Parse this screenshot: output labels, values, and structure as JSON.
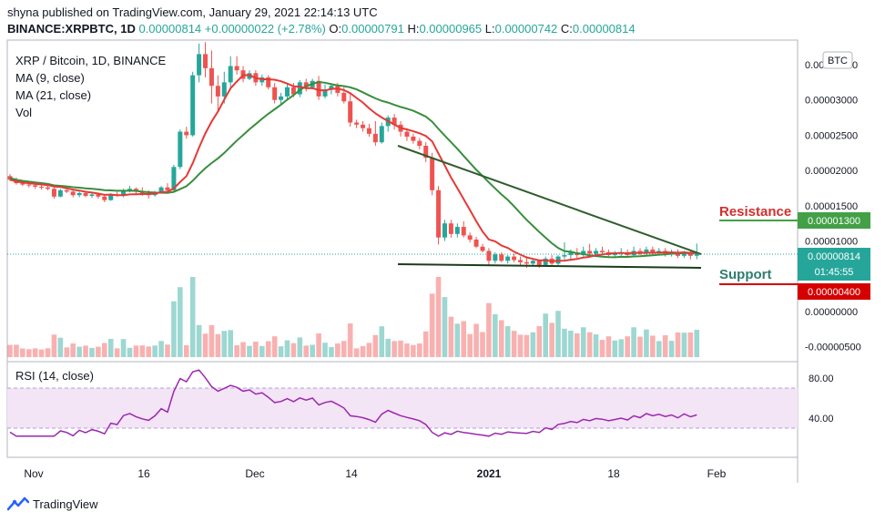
{
  "header": {
    "publish_line": "shyna published on TradingView.com, January 29, 2021 22:14:13 UTC",
    "symbol": "BINANCE:XRPBTC, 1D",
    "last": "0.00000814",
    "change": "+0.00000022 (+2.78%)",
    "o_label": "O:",
    "o_value": "0.00000791",
    "h_label": "H:",
    "h_value": "0.00000965",
    "l_label": "L:",
    "l_value": "0.00000742",
    "c_label": "C:",
    "c_value": "0.00000814"
  },
  "legend": {
    "title": "XRP / Bitcoin, 1D, BINANCE",
    "ma9": "MA (9, close)",
    "ma21": "MA (21, close)",
    "vol": "Vol"
  },
  "rsi_label": "RSI (14, close)",
  "currency_badge": "BTC",
  "annotations": {
    "resistance": "Resistance",
    "support": "Support",
    "resistance_value": "0.00001300",
    "price_value": "0.00000814",
    "countdown": "01:45:55",
    "support_value": "0.00000400"
  },
  "brand": "TradingView",
  "colors": {
    "up": "#26a69a",
    "down": "#ef5350",
    "ma9": "#e53935",
    "ma21": "#388e3c",
    "trendline": "#2e5e2e",
    "rsi": "#9c27b0",
    "rsi_band": "#f3e5f5",
    "resistance_badge": "#43a047",
    "support_badge": "#d50000",
    "price_badge": "#26a69a"
  },
  "chart_data": {
    "type": "candlestick",
    "title": "XRP / Bitcoin, 1D, BINANCE",
    "x_ticks": [
      "Nov",
      "16",
      "Dec",
      "14",
      "2021",
      "18",
      "Feb"
    ],
    "price_axis": {
      "ticks": [
        "0.00003500",
        "0.00003000",
        "0.00002500",
        "0.00002000",
        "0.00001500",
        "0.00001000",
        "0.00000500",
        "0.00000000",
        "-0.00000500"
      ],
      "tick_values": [
        3.5e-05,
        3e-05,
        2.5e-05,
        2e-05,
        1.5e-05,
        1e-05,
        5e-06,
        0,
        -5e-06
      ]
    },
    "rsi_axis": {
      "ticks": [
        "80.00",
        "40.00"
      ],
      "tick_values": [
        80,
        40
      ],
      "band": [
        30,
        70
      ]
    },
    "levels": {
      "resistance": 1.3e-05,
      "support": 4e-06,
      "last": 8.14e-06
    },
    "candles": [
      [
        1.92e-05,
        1.95e-05,
        1.85e-05,
        1.87e-05
      ],
      [
        1.87e-05,
        1.9e-05,
        1.8e-05,
        1.82e-05
      ],
      [
        1.82e-05,
        1.86e-05,
        1.78e-05,
        1.8e-05
      ],
      [
        1.8e-05,
        1.85e-05,
        1.76e-05,
        1.79e-05
      ],
      [
        1.79e-05,
        1.82e-05,
        1.74e-05,
        1.77e-05
      ],
      [
        1.77e-05,
        1.81e-05,
        1.73e-05,
        1.76e-05
      ],
      [
        1.76e-05,
        1.8e-05,
        1.72e-05,
        1.74e-05
      ],
      [
        1.74e-05,
        1.77e-05,
        1.6e-05,
        1.63e-05
      ],
      [
        1.63e-05,
        1.74e-05,
        1.62e-05,
        1.72e-05
      ],
      [
        1.72e-05,
        1.78e-05,
        1.68e-05,
        1.7e-05
      ],
      [
        1.7e-05,
        1.73e-05,
        1.62e-05,
        1.65e-05
      ],
      [
        1.65e-05,
        1.7e-05,
        1.62e-05,
        1.68e-05
      ],
      [
        1.68e-05,
        1.7e-05,
        1.62e-05,
        1.64e-05
      ],
      [
        1.64e-05,
        1.69e-05,
        1.61e-05,
        1.66e-05
      ],
      [
        1.66e-05,
        1.68e-05,
        1.6e-05,
        1.63e-05
      ],
      [
        1.63e-05,
        1.66e-05,
        1.55e-05,
        1.58e-05
      ],
      [
        1.58e-05,
        1.68e-05,
        1.57e-05,
        1.66e-05
      ],
      [
        1.66e-05,
        1.7e-05,
        1.63e-05,
        1.64e-05
      ],
      [
        1.64e-05,
        1.74e-05,
        1.62e-05,
        1.72e-05
      ],
      [
        1.72e-05,
        1.78e-05,
        1.69e-05,
        1.74e-05
      ],
      [
        1.74e-05,
        1.76e-05,
        1.67e-05,
        1.7e-05
      ],
      [
        1.7e-05,
        1.76e-05,
        1.64e-05,
        1.67e-05
      ],
      [
        1.67e-05,
        1.72e-05,
        1.6e-05,
        1.65e-05
      ],
      [
        1.65e-05,
        1.71e-05,
        1.63e-05,
        1.69e-05
      ],
      [
        1.69e-05,
        1.78e-05,
        1.67e-05,
        1.76e-05
      ],
      [
        1.76e-05,
        1.82e-05,
        1.7e-05,
        1.72e-05
      ],
      [
        1.72e-05,
        2.08e-05,
        1.71e-05,
        2.05e-05
      ],
      [
        2.05e-05,
        2.58e-05,
        2.02e-05,
        2.55e-05
      ],
      [
        2.55e-05,
        2.62e-05,
        2.45e-05,
        2.5e-05
      ],
      [
        2.5e-05,
        3.4e-05,
        2.48e-05,
        3.35e-05
      ],
      [
        3.35e-05,
        3.8e-05,
        3.25e-05,
        3.65e-05
      ],
      [
        3.65e-05,
        3.82e-05,
        3.32e-05,
        3.45e-05
      ],
      [
        3.45e-05,
        3.7e-05,
        2.95e-05,
        3.2e-05
      ],
      [
        3.2e-05,
        3.35e-05,
        2.85e-05,
        3.05e-05
      ],
      [
        3.05e-05,
        3.4e-05,
        2.95e-05,
        3.25e-05
      ],
      [
        3.25e-05,
        3.62e-05,
        3.15e-05,
        3.48e-05
      ],
      [
        3.48e-05,
        3.62e-05,
        3.36e-05,
        3.42e-05
      ],
      [
        3.42e-05,
        3.48e-05,
        3.25e-05,
        3.3e-05
      ],
      [
        3.3e-05,
        3.42e-05,
        3.28e-05,
        3.38e-05
      ],
      [
        3.38e-05,
        3.42e-05,
        3.2e-05,
        3.25e-05
      ],
      [
        3.25e-05,
        3.36e-05,
        3.2e-05,
        3.32e-05
      ],
      [
        3.32e-05,
        3.35e-05,
        3.15e-05,
        3.18e-05
      ],
      [
        3.18e-05,
        3.24e-05,
        2.95e-05,
        3e-05
      ],
      [
        3e-05,
        3.1e-05,
        2.92e-05,
        3.05e-05
      ],
      [
        3.05e-05,
        3.22e-05,
        3e-05,
        3.18e-05
      ],
      [
        3.18e-05,
        3.24e-05,
        3.04e-05,
        3.08e-05
      ],
      [
        3.08e-05,
        3.28e-05,
        3.04e-05,
        3.25e-05
      ],
      [
        3.25e-05,
        3.3e-05,
        3.12e-05,
        3.18e-05
      ],
      [
        3.18e-05,
        3.3e-05,
        3.15e-05,
        3.27e-05
      ],
      [
        3.27e-05,
        3.34e-05,
        3e-05,
        3.05e-05
      ],
      [
        3.05e-05,
        3.22e-05,
        3.02e-05,
        3.15e-05
      ],
      [
        3.15e-05,
        3.24e-05,
        3.08e-05,
        3.2e-05
      ],
      [
        3.2e-05,
        3.24e-05,
        3.05e-05,
        3.1e-05
      ],
      [
        3.1e-05,
        3.18e-05,
        2.95e-05,
        2.98e-05
      ],
      [
        2.98e-05,
        3.08e-05,
        2.62e-05,
        2.68e-05
      ],
      [
        2.68e-05,
        2.72e-05,
        2.6e-05,
        2.65e-05
      ],
      [
        2.65e-05,
        2.7e-05,
        2.55e-05,
        2.6e-05
      ],
      [
        2.6e-05,
        2.66e-05,
        2.48e-05,
        2.52e-05
      ],
      [
        2.52e-05,
        2.7e-05,
        2.35e-05,
        2.4e-05
      ],
      [
        2.4e-05,
        2.68e-05,
        2.38e-05,
        2.63e-05
      ],
      [
        2.63e-05,
        2.78e-05,
        2.55e-05,
        2.75e-05
      ],
      [
        2.75e-05,
        2.8e-05,
        2.58e-05,
        2.65e-05
      ],
      [
        2.65e-05,
        2.7e-05,
        2.48e-05,
        2.55e-05
      ],
      [
        2.55e-05,
        2.6e-05,
        2.42e-05,
        2.48e-05
      ],
      [
        2.48e-05,
        2.52e-05,
        2.38e-05,
        2.42e-05
      ],
      [
        2.42e-05,
        2.46e-05,
        2.3e-05,
        2.35e-05
      ],
      [
        2.35e-05,
        2.4e-05,
        2.12e-05,
        2.18e-05
      ],
      [
        2.18e-05,
        2.25e-05,
        1.65e-05,
        1.72e-05
      ],
      [
        1.72e-05,
        1.78e-05,
        9.5e-06,
        1.05e-05
      ],
      [
        1.05e-05,
        1.3e-05,
        1e-05,
        1.25e-05
      ],
      [
        1.25e-05,
        1.3e-05,
        1.05e-05,
        1.1e-05
      ],
      [
        1.1e-05,
        1.25e-05,
        1.05e-05,
        1.2e-05
      ],
      [
        1.2e-05,
        1.28e-05,
        1.05e-05,
        1.08e-05
      ],
      [
        1.08e-05,
        1.12e-05,
        9.8e-06,
        1.02e-05
      ],
      [
        1.02e-05,
        1.06e-05,
        9e-06,
        9.2e-06
      ],
      [
        9.2e-06,
        9.6e-06,
        8.4e-06,
        8.6e-06
      ],
      [
        8.6e-06,
        9e-06,
        6.6e-06,
        7.2e-06
      ],
      [
        7.2e-06,
        8.4e-06,
        6.8e-06,
        8.1e-06
      ],
      [
        8.1e-06,
        8.4e-06,
        7e-06,
        7.2e-06
      ],
      [
        7.2e-06,
        8e-06,
        6.8e-06,
        7.8e-06
      ],
      [
        7.8e-06,
        8.2e-06,
        7e-06,
        7.3e-06
      ],
      [
        7.3e-06,
        7.8e-06,
        6.6e-06,
        7e-06
      ],
      [
        7e-06,
        7.6e-06,
        6.2e-06,
        6.8e-06
      ],
      [
        6.8e-06,
        7.4e-06,
        6.4e-06,
        7.2e-06
      ],
      [
        7.2e-06,
        7.4e-06,
        6.2e-06,
        6.6e-06
      ],
      [
        6.6e-06,
        7.8e-06,
        6.5e-06,
        7.5e-06
      ],
      [
        7.5e-06,
        8e-06,
        6.6e-06,
        6.8e-06
      ],
      [
        6.8e-06,
        8e-06,
        6.6e-06,
        7.8e-06
      ],
      [
        7.8e-06,
        9.8e-06,
        7.4e-06,
        8e-06
      ],
      [
        8e-06,
        8.8e-06,
        7.2e-06,
        8.4e-06
      ],
      [
        8.4e-06,
        9e-06,
        7.6e-06,
        8e-06
      ],
      [
        8e-06,
        9.2e-06,
        7.8e-06,
        8.6e-06
      ],
      [
        8.6e-06,
        9.6e-06,
        8e-06,
        8.2e-06
      ],
      [
        8.2e-06,
        9e-06,
        7.8e-06,
        8.6e-06
      ],
      [
        8.6e-06,
        9.2e-06,
        8e-06,
        8.4e-06
      ],
      [
        8.4e-06,
        8.8e-06,
        7.8e-06,
        8e-06
      ],
      [
        8e-06,
        8.6e-06,
        7.6e-06,
        8.2e-06
      ],
      [
        8.2e-06,
        9e-06,
        7.8e-06,
        8.4e-06
      ],
      [
        8.4e-06,
        8.8e-06,
        7.8e-06,
        8e-06
      ],
      [
        8e-06,
        9.2e-06,
        7.8e-06,
        8.6e-06
      ],
      [
        8.6e-06,
        9e-06,
        8e-06,
        8.2e-06
      ],
      [
        8.2e-06,
        9.2e-06,
        8e-06,
        8.8e-06
      ],
      [
        8.8e-06,
        9.2e-06,
        8e-06,
        8.4e-06
      ],
      [
        8.4e-06,
        9e-06,
        8e-06,
        8.6e-06
      ],
      [
        8.6e-06,
        9e-06,
        7.8e-06,
        8.2e-06
      ],
      [
        8.2e-06,
        8.8e-06,
        7.8e-06,
        8.4e-06
      ],
      [
        8.4e-06,
        8.8e-06,
        7.6e-06,
        7.9e-06
      ],
      [
        7.9e-06,
        8.6e-06,
        7.6e-06,
        8.4e-06
      ],
      [
        8.4e-06,
        8.6e-06,
        7.4e-06,
        7.9e-06
      ],
      [
        7.91e-06,
        9.65e-06,
        7.42e-06,
        8.14e-06
      ]
    ]
  }
}
